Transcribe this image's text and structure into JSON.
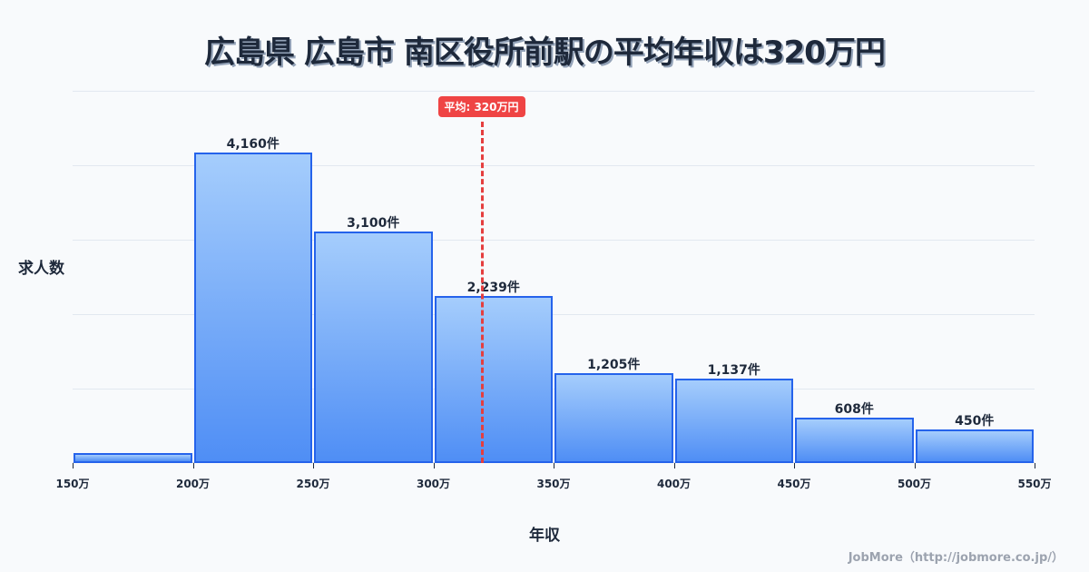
{
  "title": "広島県 広島市 南区役所前駅の平均年収は320万円",
  "y_axis_label": "求人数",
  "x_axis_label": "年収",
  "average_badge": "平均: 320万円",
  "credit": "JobMore（http://jobmore.co.jp/）",
  "colors": {
    "bar_border": "#2563eb",
    "bar_top": "#a5cdfc",
    "bar_bottom": "#4f8ef5",
    "average_line": "#ef4444",
    "background": "#f8fafc"
  },
  "x_ticks": [
    "150万",
    "200万",
    "250万",
    "300万",
    "350万",
    "400万",
    "450万",
    "500万",
    "550万"
  ],
  "bars": [
    {
      "range": "150-200万",
      "value": 130,
      "label": ""
    },
    {
      "range": "200-250万",
      "value": 4160,
      "label": "4,160件"
    },
    {
      "range": "250-300万",
      "value": 3100,
      "label": "3,100件"
    },
    {
      "range": "300-350万",
      "value": 2239,
      "label": "2,239件"
    },
    {
      "range": "350-400万",
      "value": 1205,
      "label": "1,205件"
    },
    {
      "range": "400-450万",
      "value": 1137,
      "label": "1,137件"
    },
    {
      "range": "450-500万",
      "value": 608,
      "label": "608件"
    },
    {
      "range": "500-550万",
      "value": 450,
      "label": "450件"
    }
  ],
  "chart_data": {
    "type": "bar",
    "title": "広島県 広島市 南区役所前駅の平均年収は320万円",
    "xlabel": "年収",
    "ylabel": "求人数",
    "categories": [
      "150-200万",
      "200-250万",
      "250-300万",
      "300-350万",
      "350-400万",
      "400-450万",
      "450-500万",
      "500-550万"
    ],
    "values": [
      130,
      4160,
      3100,
      2239,
      1205,
      1137,
      608,
      450
    ],
    "data_labels": [
      "",
      "4,160件",
      "3,100件",
      "2,239件",
      "1,205件",
      "1,137件",
      "608件",
      "450件"
    ],
    "x_tick_labels": [
      "150万",
      "200万",
      "250万",
      "300万",
      "350万",
      "400万",
      "450万",
      "500万",
      "550万"
    ],
    "ylim": [
      0,
      4992
    ],
    "grid": true,
    "annotations": [
      {
        "type": "vline",
        "x": 320,
        "label": "平均: 320万円",
        "color": "#ef4444",
        "style": "dashed"
      }
    ],
    "legend": "none"
  }
}
